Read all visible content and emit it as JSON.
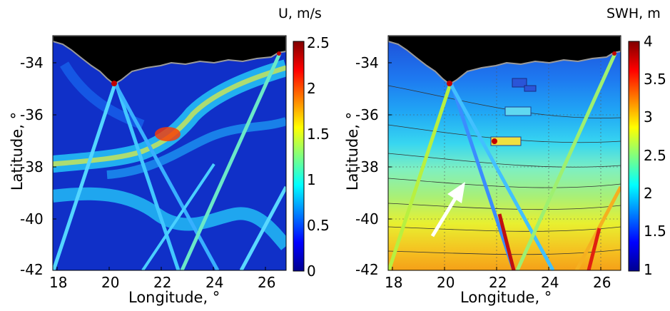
{
  "panels": [
    {
      "id": "left",
      "quantity_label": "U, m/s",
      "xlabel": "Longitude, °",
      "ylabel": "Latitude, °",
      "x_ticks": [
        "18",
        "20",
        "22",
        "24",
        "26"
      ],
      "y_ticks": [
        "-34",
        "-36",
        "-38",
        "-40",
        "-42"
      ],
      "colorbar_ticks": [
        "2.5",
        "2",
        "1.5",
        "1",
        "0.5",
        "0"
      ],
      "colorbar_range": [
        0,
        2.5
      ],
      "colormap": "jet"
    },
    {
      "id": "right",
      "quantity_label": "SWH, m",
      "xlabel": "Longitude, °",
      "ylabel": "Latitude, °",
      "x_ticks": [
        "18",
        "20",
        "22",
        "24",
        "26"
      ],
      "y_ticks": [
        "-34",
        "-36",
        "-38",
        "-40",
        "-42"
      ],
      "colorbar_ticks": [
        "4",
        "3.5",
        "3",
        "2.5",
        "2",
        "1.5",
        "1"
      ],
      "colorbar_range": [
        1,
        4
      ],
      "colormap": "jet"
    }
  ],
  "map_extent": {
    "lon": [
      17.5,
      26.5
    ],
    "lat": [
      -42,
      -33
    ]
  },
  "land_color": "#000000",
  "coastline_color": "#9a9a9a"
}
